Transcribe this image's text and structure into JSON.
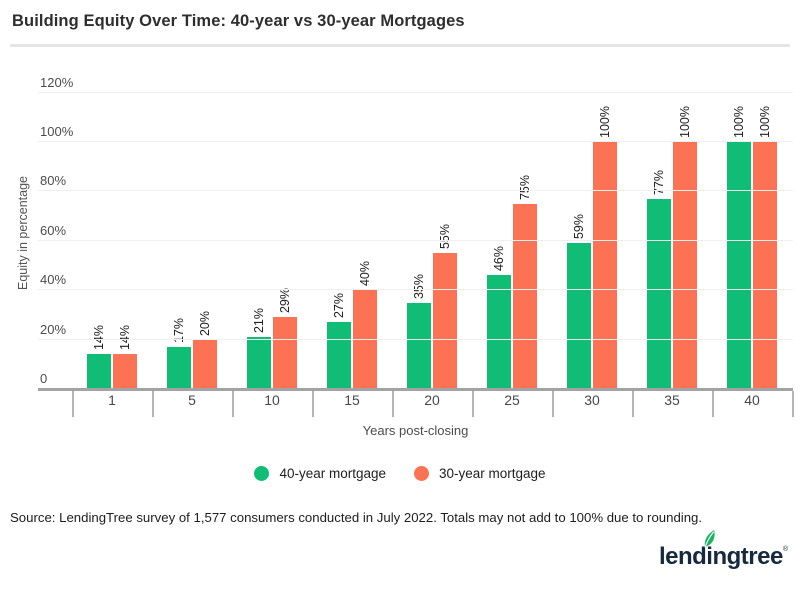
{
  "page": {
    "title": "Building Equity Over Time: 40-year vs 30-year Mortgages",
    "source_note": "Source: LendingTree survey of 1,577 consumers conducted in July 2022. Totals may not add to 100% due to rounding.",
    "logo_text": "lendingtree",
    "logo_reg_mark": "®",
    "logo_leaf_icon": "leaf-icon",
    "logo_color": "#16293f",
    "logo_leaf_color": "#1cb462"
  },
  "chart_data": {
    "type": "bar",
    "title": "Building Equity Over Time: 40-year vs 30-year Mortgages",
    "xlabel": "Years post-closing",
    "ylabel": "Equity in percentage",
    "categories": [
      "1",
      "5",
      "10",
      "15",
      "20",
      "25",
      "30",
      "35",
      "40"
    ],
    "series": [
      {
        "name": "40-year mortgage",
        "color": "#0fbe74",
        "values": [
          14,
          17,
          21,
          27,
          35,
          46,
          59,
          77,
          100
        ]
      },
      {
        "name": "30-year mortgage",
        "color": "#fc7255",
        "values": [
          14,
          20,
          29,
          40,
          55,
          75,
          100,
          100,
          100
        ]
      }
    ],
    "value_label_format": "{v}%",
    "y_ticks": [
      0,
      20,
      40,
      60,
      80,
      100,
      120
    ],
    "y_tick_labels": [
      "0",
      "20%",
      "40%",
      "60%",
      "80%",
      "100%",
      "120%"
    ],
    "ylim": [
      0,
      120
    ],
    "grid": true,
    "legend_position": "bottom"
  }
}
